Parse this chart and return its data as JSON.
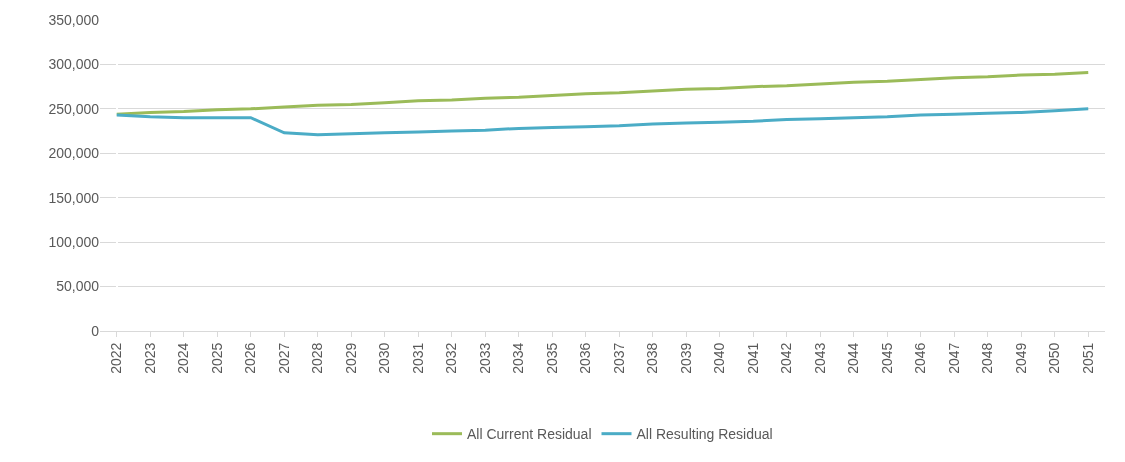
{
  "chart_data": {
    "type": "line",
    "categories": [
      "2022",
      "2023",
      "2024",
      "2025",
      "2026",
      "2027",
      "2028",
      "2029",
      "2030",
      "2031",
      "2032",
      "2033",
      "2034",
      "2035",
      "2036",
      "2037",
      "2038",
      "2039",
      "2040",
      "2041",
      "2042",
      "2043",
      "2044",
      "2045",
      "2046",
      "2047",
      "2048",
      "2049",
      "2050",
      "2051"
    ],
    "series": [
      {
        "name": "All Current Residual",
        "color": "#9bbb59",
        "values": [
          244000,
          246000,
          247000,
          249000,
          250000,
          252000,
          254000,
          255000,
          257000,
          259000,
          260000,
          262000,
          263000,
          265000,
          267000,
          268000,
          270000,
          272000,
          273000,
          275000,
          276000,
          278000,
          280000,
          281000,
          283000,
          285000,
          286000,
          288000,
          289000,
          291000
        ]
      },
      {
        "name": "All Resulting Residual",
        "color": "#4bacc6",
        "values": [
          243000,
          241000,
          240000,
          240000,
          240000,
          223000,
          221000,
          222000,
          223000,
          224000,
          225000,
          226000,
          228000,
          229000,
          230000,
          231000,
          233000,
          234000,
          235000,
          236000,
          238000,
          239000,
          240000,
          241000,
          243000,
          244000,
          245000,
          246000,
          248000,
          250000
        ]
      }
    ],
    "ylim": [
      0,
      350000
    ],
    "yticks": [
      {
        "value": 0,
        "label": "0"
      },
      {
        "value": 50000,
        "label": "50,000"
      },
      {
        "value": 100000,
        "label": "100,000"
      },
      {
        "value": 150000,
        "label": "150,000"
      },
      {
        "value": 200000,
        "label": "200,000"
      },
      {
        "value": 250000,
        "label": "250,000"
      },
      {
        "value": 300000,
        "label": "300,000"
      },
      {
        "value": 350000,
        "label": "350,000"
      }
    ],
    "grid": "y",
    "legend": "bottom",
    "marker": "none",
    "line_style": "solid"
  }
}
